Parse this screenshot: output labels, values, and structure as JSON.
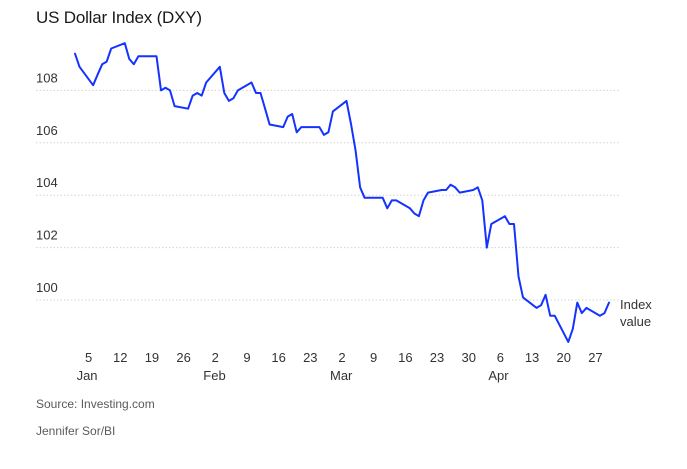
{
  "title": "US Dollar Index (DXY)",
  "source": "Source: Investing.com",
  "credit": "Jennifer Sor/BI",
  "annotation": [
    "Index",
    "value"
  ],
  "chart_data": {
    "type": "line",
    "title": "US Dollar Index (DXY)",
    "xlabel": "",
    "ylabel": "",
    "ylim": [
      98.2,
      110
    ],
    "grid": true,
    "line_color": "#1433ff",
    "y_ticks": [
      100,
      102,
      104,
      106,
      108
    ],
    "x_ticks": [
      {
        "date": "2025-01-05",
        "label": "5",
        "month": "Jan"
      },
      {
        "date": "2025-01-12",
        "label": "12",
        "month": ""
      },
      {
        "date": "2025-01-19",
        "label": "19",
        "month": ""
      },
      {
        "date": "2025-01-26",
        "label": "26",
        "month": ""
      },
      {
        "date": "2025-02-02",
        "label": "2",
        "month": "Feb"
      },
      {
        "date": "2025-02-09",
        "label": "9",
        "month": ""
      },
      {
        "date": "2025-02-16",
        "label": "16",
        "month": ""
      },
      {
        "date": "2025-02-23",
        "label": "23",
        "month": ""
      },
      {
        "date": "2025-03-02",
        "label": "2",
        "month": "Mar"
      },
      {
        "date": "2025-03-09",
        "label": "9",
        "month": ""
      },
      {
        "date": "2025-03-16",
        "label": "16",
        "month": ""
      },
      {
        "date": "2025-03-23",
        "label": "23",
        "month": ""
      },
      {
        "date": "2025-03-30",
        "label": "30",
        "month": ""
      },
      {
        "date": "2025-04-06",
        "label": "6",
        "month": "Apr"
      },
      {
        "date": "2025-04-13",
        "label": "13",
        "month": ""
      },
      {
        "date": "2025-04-20",
        "label": "20",
        "month": ""
      },
      {
        "date": "2025-04-27",
        "label": "27",
        "month": ""
      }
    ],
    "series": [
      {
        "name": "",
        "x": [
          "2025-01-02",
          "2025-01-03",
          "2025-01-06",
          "2025-01-07",
          "2025-01-08",
          "2025-01-09",
          "2025-01-10",
          "2025-01-13",
          "2025-01-14",
          "2025-01-15",
          "2025-01-16",
          "2025-01-17",
          "2025-01-20",
          "2025-01-21",
          "2025-01-22",
          "2025-01-23",
          "2025-01-24",
          "2025-01-27",
          "2025-01-28",
          "2025-01-29",
          "2025-01-30",
          "2025-01-31",
          "2025-02-03",
          "2025-02-04",
          "2025-02-05",
          "2025-02-06",
          "2025-02-07",
          "2025-02-10",
          "2025-02-11",
          "2025-02-12",
          "2025-02-13",
          "2025-02-14",
          "2025-02-17",
          "2025-02-18",
          "2025-02-19",
          "2025-02-20",
          "2025-02-21",
          "2025-02-24",
          "2025-02-25",
          "2025-02-26",
          "2025-02-27",
          "2025-02-28",
          "2025-03-03",
          "2025-03-04",
          "2025-03-05",
          "2025-03-06",
          "2025-03-07",
          "2025-03-10",
          "2025-03-11",
          "2025-03-12",
          "2025-03-13",
          "2025-03-14",
          "2025-03-17",
          "2025-03-18",
          "2025-03-19",
          "2025-03-20",
          "2025-03-21",
          "2025-03-24",
          "2025-03-25",
          "2025-03-26",
          "2025-03-27",
          "2025-03-28",
          "2025-03-31",
          "2025-04-01",
          "2025-04-02",
          "2025-04-03",
          "2025-04-04",
          "2025-04-07",
          "2025-04-08",
          "2025-04-09",
          "2025-04-10",
          "2025-04-11",
          "2025-04-14",
          "2025-04-15",
          "2025-04-16",
          "2025-04-17",
          "2025-04-18",
          "2025-04-21",
          "2025-04-22",
          "2025-04-23",
          "2025-04-24",
          "2025-04-25",
          "2025-04-28",
          "2025-04-29",
          "2025-04-30"
        ],
        "values": [
          109.4,
          108.9,
          108.2,
          108.6,
          109.0,
          109.1,
          109.6,
          109.8,
          109.2,
          109.0,
          109.3,
          109.3,
          109.3,
          108.0,
          108.1,
          108.0,
          107.4,
          107.3,
          107.8,
          107.9,
          107.8,
          108.3,
          108.9,
          107.9,
          107.6,
          107.7,
          108.0,
          108.3,
          107.9,
          107.9,
          107.3,
          106.7,
          106.6,
          107.0,
          107.1,
          106.4,
          106.6,
          106.6,
          106.6,
          106.3,
          106.4,
          107.2,
          107.6,
          106.7,
          105.7,
          104.3,
          103.9,
          103.9,
          103.9,
          103.5,
          103.8,
          103.8,
          103.5,
          103.3,
          103.2,
          103.8,
          104.1,
          104.2,
          104.2,
          104.4,
          104.3,
          104.1,
          104.2,
          104.3,
          103.8,
          102.0,
          102.9,
          103.2,
          102.9,
          102.9,
          100.9,
          100.1,
          99.7,
          99.8,
          100.2,
          99.4,
          99.4,
          98.4,
          98.9,
          99.9,
          99.5,
          99.7,
          99.4,
          99.5,
          99.9
        ]
      }
    ]
  }
}
